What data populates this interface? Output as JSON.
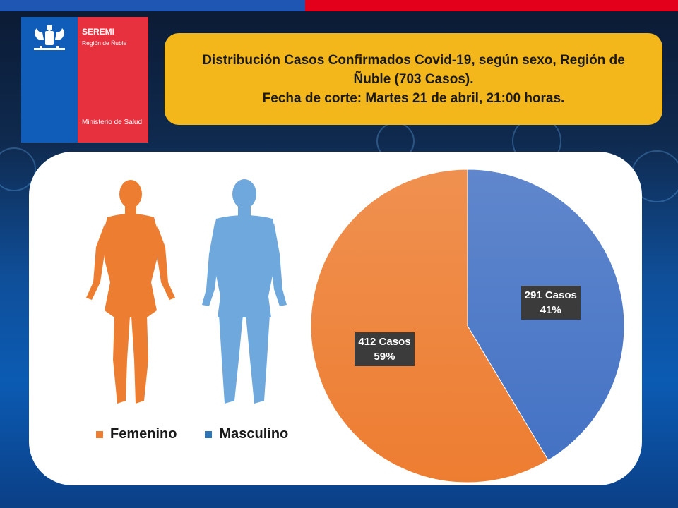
{
  "header": {
    "logo": {
      "seremi": "SEREMI",
      "region": "Región de Ñuble",
      "ministry": "Ministerio de Salud",
      "colors": {
        "blue": "#0f5db8",
        "red": "#e8313f"
      }
    },
    "title_lines": [
      "Distribución Casos Confirmados Covid-19, según sexo, Región de",
      "Ñuble (703 Casos).",
      "Fecha de corte: Martes 21 de abril, 21:00 horas."
    ]
  },
  "legend": [
    {
      "label": "Femenino",
      "color": "#ed7d31"
    },
    {
      "label": "Masculino",
      "color": "#2e75b6"
    }
  ],
  "icons": [
    "female-figure-icon",
    "male-figure-icon"
  ],
  "chart_data": {
    "type": "pie",
    "title": "Distribución Casos Confirmados Covid-19, según sexo, Región de Ñuble (703 Casos).",
    "total": 703,
    "start": "12 o'clock",
    "direction": "clockwise",
    "slices": [
      {
        "name": "Masculino",
        "value": 291,
        "percent": 41,
        "label_line1": "291 Casos",
        "label_line2": "41%",
        "color": "#4472c4"
      },
      {
        "name": "Femenino",
        "value": 412,
        "percent": 59,
        "label_line1": "412 Casos",
        "label_line2": "59%",
        "color": "#ed7d31"
      }
    ]
  }
}
